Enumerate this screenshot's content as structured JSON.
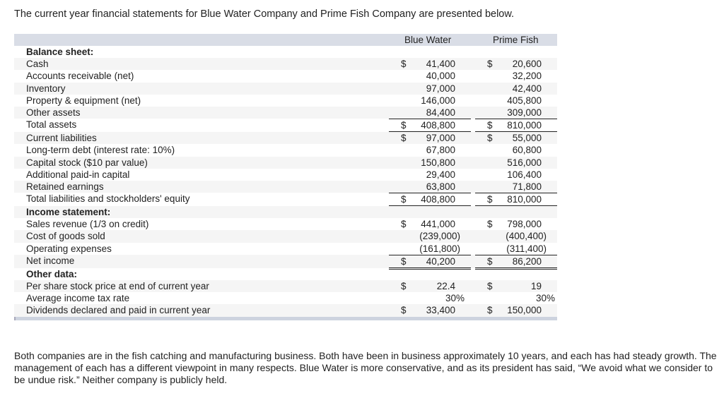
{
  "intro": "The current year financial statements for Blue Water Company and Prime Fish Company are presented below.",
  "table": {
    "columns": [
      "Blue Water",
      "Prime Fish"
    ],
    "rows": [
      {
        "label": "Balance sheet:",
        "bold": true,
        "bw_cur": "",
        "bw": "",
        "pf_cur": "",
        "pf": ""
      },
      {
        "label": "Cash",
        "bw_cur": "$",
        "bw": "41,400",
        "pf_cur": "$",
        "pf": "20,600"
      },
      {
        "label": "Accounts receivable (net)",
        "bw_cur": "",
        "bw": "40,000",
        "pf_cur": "",
        "pf": "32,200"
      },
      {
        "label": "Inventory",
        "bw_cur": "",
        "bw": "97,000",
        "pf_cur": "",
        "pf": "42,400"
      },
      {
        "label": "Property & equipment (net)",
        "bw_cur": "",
        "bw": "146,000",
        "pf_cur": "",
        "pf": "405,800"
      },
      {
        "label": "Other assets",
        "bw_cur": "",
        "bw": "84,400",
        "pf_cur": "",
        "pf": "309,000"
      },
      {
        "label": "Total assets",
        "bw_cur": "$",
        "bw": "408,800",
        "pf_cur": "$",
        "pf": "810,000"
      },
      {
        "label": "Current liabilities",
        "bw_cur": "$",
        "bw": "97,000",
        "pf_cur": "$",
        "pf": "55,000"
      },
      {
        "label": "Long-term debt (interest rate: 10%)",
        "bw_cur": "",
        "bw": "67,800",
        "pf_cur": "",
        "pf": "60,800"
      },
      {
        "label": "Capital stock ($10 par value)",
        "bw_cur": "",
        "bw": "150,800",
        "pf_cur": "",
        "pf": "516,000"
      },
      {
        "label": "Additional paid-in capital",
        "bw_cur": "",
        "bw": "29,400",
        "pf_cur": "",
        "pf": "106,400"
      },
      {
        "label": "Retained earnings",
        "bw_cur": "",
        "bw": "63,800",
        "pf_cur": "",
        "pf": "71,800"
      },
      {
        "label": "Total liabilities and stockholders' equity",
        "bw_cur": "$",
        "bw": "408,800",
        "pf_cur": "$",
        "pf": "810,000"
      },
      {
        "label": "Income statement:",
        "bold": true,
        "bw_cur": "",
        "bw": "",
        "pf_cur": "",
        "pf": ""
      },
      {
        "label": "Sales revenue (1/3 on credit)",
        "bw_cur": "$",
        "bw": "441,000",
        "pf_cur": "$",
        "pf": "798,000"
      },
      {
        "label": "Cost of goods sold",
        "bw_cur": "",
        "bw": "(239,000)",
        "pf_cur": "",
        "pf": "(400,400)"
      },
      {
        "label": "Operating expenses",
        "bw_cur": "",
        "bw": "(161,800)",
        "pf_cur": "",
        "pf": "(311,400)"
      },
      {
        "label": "Net income",
        "bw_cur": "$",
        "bw": "40,200",
        "pf_cur": "$",
        "pf": "86,200"
      },
      {
        "label": "Other data:",
        "bold": true,
        "bw_cur": "",
        "bw": "",
        "pf_cur": "",
        "pf": ""
      },
      {
        "label": "Per share stock price at end of current year",
        "bw_cur": "$",
        "bw": "22.4",
        "pf_cur": "$",
        "pf": "19"
      },
      {
        "label": "Average income tax rate",
        "bw_cur": "",
        "bw": "30%",
        "pf_cur": "",
        "pf": "30%"
      },
      {
        "label": "Dividends declared and paid in current year",
        "bw_cur": "$",
        "bw": "33,400",
        "pf_cur": "$",
        "pf": "150,000"
      }
    ]
  },
  "paragraph": "Both companies are in the fish catching and manufacturing business. Both have been in business approximately 10 years, and each has had steady growth. The management of each has a different viewpoint in many respects. Blue Water is more conservative, and as its president has said, “We avoid what we consider to be undue risk.” Neither company is publicly held."
}
